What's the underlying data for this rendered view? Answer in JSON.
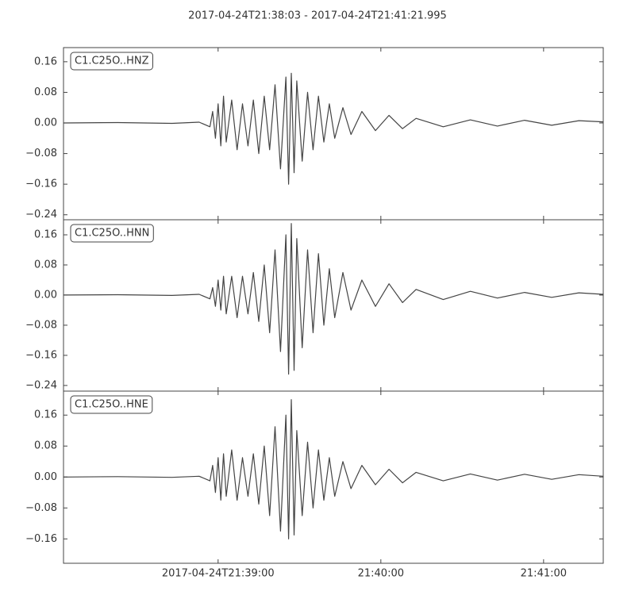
{
  "title": "2017-04-24T21:38:03  -  2017-04-24T21:41:21.995",
  "chart_data": [
    {
      "type": "line",
      "x": [
        0,
        20,
        40,
        50,
        54,
        55,
        56,
        57,
        58,
        59,
        60,
        62,
        64,
        66,
        68,
        70,
        72,
        74,
        76,
        78,
        80,
        82,
        83,
        84,
        85,
        86,
        88,
        90,
        92,
        94,
        96,
        98,
        100,
        103,
        106,
        110,
        115,
        120,
        125,
        130,
        140,
        150,
        160,
        170,
        180,
        190,
        199
      ],
      "series": [
        {
          "name": "C1.C25O..HNZ",
          "color": "#444444",
          "values": [
            0,
            0.001,
            -0.001,
            0.002,
            -0.01,
            0.03,
            -0.04,
            0.05,
            -0.06,
            0.07,
            -0.05,
            0.06,
            -0.07,
            0.05,
            -0.06,
            0.06,
            -0.08,
            0.07,
            -0.07,
            0.1,
            -0.12,
            0.12,
            -0.16,
            0.13,
            -0.13,
            0.11,
            -0.1,
            0.08,
            -0.07,
            0.07,
            -0.05,
            0.05,
            -0.04,
            0.04,
            -0.03,
            0.03,
            -0.02,
            0.02,
            -0.015,
            0.012,
            -0.01,
            0.008,
            -0.008,
            0.007,
            -0.006,
            0.006,
            0.003
          ]
        }
      ],
      "xlim": [
        0,
        198.995
      ],
      "ylim": [
        -0.253,
        0.197
      ],
      "yticks": [
        0.16,
        0.08,
        {
          "value": 0,
          "label": "0.00"
        },
        {
          "value": -0.08,
          "label": "−0.08"
        },
        {
          "value": -0.16,
          "label": "−0.16"
        },
        {
          "value": -0.24,
          "label": "−0.24"
        }
      ]
    },
    {
      "type": "line",
      "x": [
        0,
        20,
        40,
        50,
        54,
        55,
        56,
        57,
        58,
        59,
        60,
        62,
        64,
        66,
        68,
        70,
        72,
        74,
        76,
        78,
        80,
        82,
        83,
        84,
        85,
        86,
        88,
        90,
        92,
        94,
        96,
        98,
        100,
        103,
        106,
        110,
        115,
        120,
        125,
        130,
        140,
        150,
        160,
        170,
        180,
        190,
        199
      ],
      "series": [
        {
          "name": "C1.C25O..HNN",
          "color": "#444444",
          "values": [
            0,
            0.001,
            -0.001,
            0.002,
            -0.01,
            0.02,
            -0.03,
            0.04,
            -0.04,
            0.05,
            -0.05,
            0.05,
            -0.06,
            0.05,
            -0.05,
            0.06,
            -0.07,
            0.08,
            -0.1,
            0.12,
            -0.15,
            0.16,
            -0.21,
            0.19,
            -0.2,
            0.15,
            -0.14,
            0.12,
            -0.1,
            0.11,
            -0.08,
            0.07,
            -0.06,
            0.06,
            -0.04,
            0.04,
            -0.03,
            0.03,
            -0.02,
            0.015,
            -0.012,
            0.01,
            -0.008,
            0.007,
            -0.006,
            0.006,
            0.002
          ]
        }
      ],
      "xlim": [
        0,
        198.995
      ],
      "ylim": [
        -0.255,
        0.2
      ],
      "yticks": [
        0.16,
        0.08,
        {
          "value": 0,
          "label": "0.00"
        },
        {
          "value": -0.08,
          "label": "−0.08"
        },
        {
          "value": -0.16,
          "label": "−0.16"
        },
        {
          "value": -0.24,
          "label": "−0.24"
        }
      ]
    },
    {
      "type": "line",
      "x": [
        0,
        20,
        40,
        50,
        54,
        55,
        56,
        57,
        58,
        59,
        60,
        62,
        64,
        66,
        68,
        70,
        72,
        74,
        76,
        78,
        80,
        82,
        83,
        84,
        85,
        86,
        88,
        90,
        92,
        94,
        96,
        98,
        100,
        103,
        106,
        110,
        115,
        120,
        125,
        130,
        140,
        150,
        160,
        170,
        180,
        190,
        199
      ],
      "series": [
        {
          "name": "C1.C25O..HNE",
          "color": "#444444",
          "values": [
            0,
            0.001,
            -0.001,
            0.002,
            -0.01,
            0.03,
            -0.04,
            0.05,
            -0.06,
            0.06,
            -0.05,
            0.07,
            -0.06,
            0.05,
            -0.05,
            0.06,
            -0.07,
            0.08,
            -0.1,
            0.13,
            -0.14,
            0.16,
            -0.16,
            0.2,
            -0.15,
            0.12,
            -0.1,
            0.09,
            -0.08,
            0.07,
            -0.06,
            0.05,
            -0.05,
            0.04,
            -0.03,
            0.03,
            -0.02,
            0.02,
            -0.015,
            0.012,
            -0.01,
            0.008,
            -0.008,
            0.007,
            -0.006,
            0.006,
            0.002
          ]
        }
      ],
      "xlim": [
        0,
        198.995
      ],
      "ylim": [
        -0.223,
        0.222
      ],
      "yticks": [
        0.16,
        0.08,
        {
          "value": 0,
          "label": "0.00"
        },
        {
          "value": -0.08,
          "label": "−0.08"
        },
        {
          "value": -0.16,
          "label": "−0.16"
        }
      ],
      "xticks": [
        {
          "value": 57,
          "label": "2017-04-24T21:39:00"
        },
        {
          "value": 117,
          "label": "21:40:00"
        },
        {
          "value": 177,
          "label": "21:41:00"
        }
      ]
    }
  ]
}
